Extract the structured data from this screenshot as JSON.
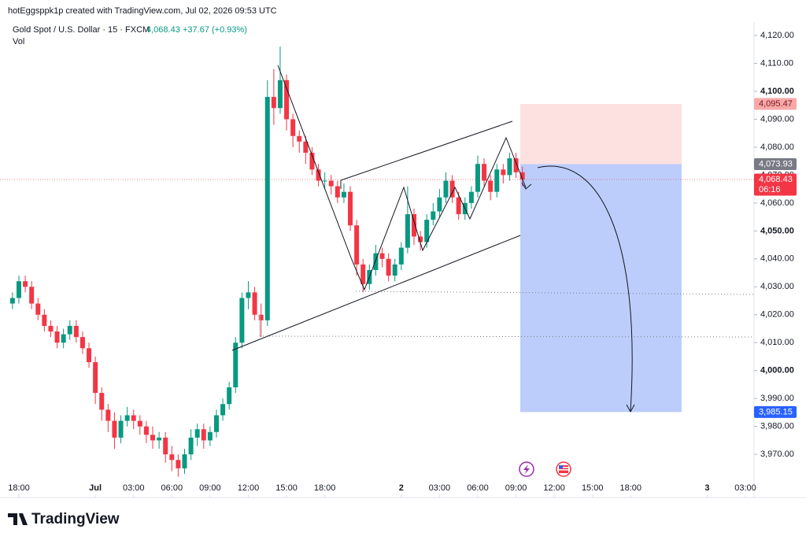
{
  "header": {
    "credit": "hotEggsppk1p created with TradingView.com, Jul 02, 2026 09:53 UTC"
  },
  "chart_data": {
    "type": "candlestick",
    "title": "Gold Spot / U.S. Dollar · 15 · FXCM",
    "last_price": {
      "value": 4068.43,
      "label": "4,068.43"
    },
    "change": "+37.67 (+0.93%)",
    "volume_label": "Vol",
    "countdown": "06:16",
    "up_color": "#089981",
    "down_color": "#f23645",
    "x": [
      -0.5,
      0,
      0.5,
      1,
      1.5,
      2,
      2.5,
      3,
      3.5,
      4,
      4.5,
      5,
      5.5,
      6,
      6.5,
      7,
      7.5,
      8,
      8.5,
      9,
      9.5,
      10,
      10.5,
      11,
      11.5,
      12,
      12.5,
      13,
      13.5,
      14,
      14.5,
      15,
      15.5,
      16,
      16.5,
      17,
      17.5,
      18,
      18.5,
      19,
      19.5,
      20,
      20.5,
      21,
      21.5,
      22,
      22.5,
      23,
      23.5,
      24,
      24.5,
      25,
      25.5,
      26,
      26.5,
      27,
      27.5,
      28,
      28.5,
      29,
      29.5,
      30,
      30.5,
      31,
      31.5,
      32,
      32.5,
      33,
      33.5,
      34,
      34.5,
      35,
      35.5,
      36,
      36.5,
      37,
      37.5,
      38,
      38.5,
      39,
      39.5
    ],
    "open": [
      4024,
      4026,
      4032,
      4030,
      4024,
      4020,
      4016,
      4014,
      4010,
      4013,
      4016,
      4012,
      4008,
      4003,
      3992,
      3986,
      3982,
      3976,
      3982,
      3984,
      3982,
      3980,
      3977,
      3975,
      3976,
      3970,
      3968,
      3965,
      3970,
      3976,
      3979,
      3975,
      3978,
      3984,
      3988,
      3994,
      4010,
      4026,
      4028,
      4020,
      4018,
      4098,
      4094,
      4104,
      4090,
      4084,
      4082,
      4078,
      4072,
      4068,
      4068,
      4066,
      4062,
      4064,
      4052,
      4038,
      4031,
      4036,
      4042,
      4040,
      4034,
      4038,
      4044,
      4056,
      4048,
      4046,
      4054,
      4057,
      4062,
      4068,
      4062,
      4056,
      4060,
      4064,
      4074,
      4068,
      4064,
      4072,
      4070,
      4076,
      4071
    ],
    "high": [
      4028,
      4034,
      4034,
      4032,
      4026,
      4022,
      4018,
      4016,
      4015,
      4018,
      4018,
      4014,
      4010,
      4005,
      3994,
      3988,
      3985,
      3984,
      3987,
      3986,
      3984,
      3982,
      3980,
      3978,
      3978,
      3973,
      3970,
      3972,
      3979,
      3981,
      3981,
      3980,
      3986,
      3990,
      3996,
      4012,
      4028,
      4032,
      4030,
      4024,
      4104,
      4108,
      4116,
      4106,
      4092,
      4086,
      4084,
      4080,
      4074,
      4071,
      4070,
      4068,
      4067,
      4066,
      4054,
      4040,
      4038,
      4045,
      4044,
      4042,
      4040,
      4046,
      4066,
      4058,
      4050,
      4056,
      4060,
      4065,
      4071,
      4070,
      4064,
      4062,
      4066,
      4077,
      4076,
      4070,
      4074,
      4074,
      4078,
      4078,
      4073
    ],
    "low": [
      4022,
      4024,
      4028,
      4022,
      4018,
      4014,
      4012,
      4008,
      4008,
      4011,
      4010,
      4006,
      4001,
      3988,
      3982,
      3978,
      3972,
      3974,
      3980,
      3979,
      3977,
      3974,
      3972,
      3972,
      3967,
      3964,
      3962,
      3963,
      3968,
      3973,
      3972,
      3973,
      3976,
      3982,
      3986,
      3992,
      4008,
      4022,
      4018,
      4012,
      4016,
      4088,
      4092,
      4086,
      4080,
      4078,
      4074,
      4070,
      4066,
      4065,
      4063,
      4060,
      4060,
      4050,
      4034,
      4028,
      4029,
      4034,
      4037,
      4032,
      4032,
      4036,
      4042,
      4045,
      4043,
      4044,
      4052,
      4055,
      4060,
      4060,
      4054,
      4054,
      4058,
      4062,
      4066,
      4061,
      4062,
      4067,
      4068,
      4069,
      4066
    ],
    "close": [
      4026,
      4032,
      4030,
      4024,
      4020,
      4016,
      4014,
      4010,
      4013,
      4016,
      4012,
      4008,
      4003,
      3992,
      3986,
      3982,
      3976,
      3982,
      3984,
      3982,
      3980,
      3977,
      3975,
      3976,
      3970,
      3968,
      3965,
      3970,
      3976,
      3979,
      3975,
      3978,
      3984,
      3988,
      3994,
      4010,
      4026,
      4028,
      4020,
      4018,
      4098,
      4094,
      4104,
      4090,
      4084,
      4082,
      4078,
      4072,
      4068,
      4068,
      4066,
      4062,
      4064,
      4052,
      4038,
      4031,
      4036,
      4042,
      4040,
      4034,
      4038,
      4044,
      4056,
      4048,
      4046,
      4054,
      4057,
      4062,
      4068,
      4062,
      4056,
      4060,
      4064,
      4074,
      4068,
      4064,
      4072,
      4070,
      4076,
      4071,
      4068.43
    ],
    "xlim": [
      -0.9,
      57.8
    ],
    "xticks": [
      {
        "value": 0,
        "label": "18:00"
      },
      {
        "value": 6,
        "label": "Jul"
      },
      {
        "value": 9,
        "label": "03:00"
      },
      {
        "value": 12,
        "label": "06:00"
      },
      {
        "value": 15,
        "label": "09:00"
      },
      {
        "value": 18,
        "label": "12:00"
      },
      {
        "value": 21,
        "label": "15:00"
      },
      {
        "value": 24,
        "label": "18:00"
      },
      {
        "value": 30,
        "label": "2"
      },
      {
        "value": 33,
        "label": "03:00"
      },
      {
        "value": 36,
        "label": "06:00"
      },
      {
        "value": 39,
        "label": "09:00"
      },
      {
        "value": 42,
        "label": "12:00"
      },
      {
        "value": 45,
        "label": "15:00"
      },
      {
        "value": 48,
        "label": "18:00"
      },
      {
        "value": 54,
        "label": "3"
      },
      {
        "value": 57,
        "label": "03:00"
      }
    ],
    "ylim": [
      3961.3,
      4124.8
    ],
    "yticks": [
      {
        "value": 4120,
        "label": "4,120.00"
      },
      {
        "value": 4110,
        "label": "4,110.00"
      },
      {
        "value": 4100,
        "label": "4,100.00"
      },
      {
        "value": 4090,
        "label": "4,090.00"
      },
      {
        "value": 4080,
        "label": "4,080.00"
      },
      {
        "value": 4070,
        "label": "4,070.00"
      },
      {
        "value": 4060,
        "label": "4,060.00"
      },
      {
        "value": 4050,
        "label": "4,050.00"
      },
      {
        "value": 4040,
        "label": "4,040.00"
      },
      {
        "value": 4030,
        "label": "4,030.00"
      },
      {
        "value": 4020,
        "label": "4,020.00"
      },
      {
        "value": 4010,
        "label": "4,010.00"
      },
      {
        "value": 4000,
        "label": "4,000.00"
      },
      {
        "value": 3990,
        "label": "3,990.00"
      },
      {
        "value": 3980,
        "label": "3,980.00"
      },
      {
        "value": 3970,
        "label": "3,970.00"
      }
    ],
    "position": {
      "stop": {
        "value": 4095.47,
        "label": "4,095.47"
      },
      "entry": {
        "value": 4073.93,
        "label": "4,073.93"
      },
      "target": {
        "value": 3985.15,
        "label": "3,985.15"
      }
    }
  },
  "footer": {
    "logo": "TradingView"
  }
}
